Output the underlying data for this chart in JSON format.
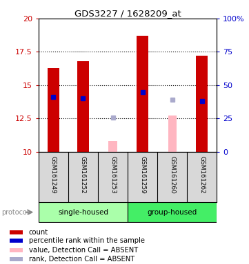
{
  "title": "GDS3227 / 1628209_at",
  "samples": [
    "GSM161249",
    "GSM161252",
    "GSM161253",
    "GSM161259",
    "GSM161260",
    "GSM161262"
  ],
  "bar_values": [
    16.3,
    16.8,
    null,
    18.7,
    null,
    17.2
  ],
  "bar_color": "#CC0000",
  "bar_width": 0.4,
  "percentile_values": [
    14.1,
    14.0,
    null,
    14.5,
    null,
    13.8
  ],
  "percentile_color": "#0000CC",
  "absent_bar_values": [
    null,
    null,
    10.8,
    null,
    12.7,
    null
  ],
  "absent_bar_color": "#FFB6C1",
  "absent_rank_values": [
    null,
    null,
    12.55,
    null,
    13.9,
    null
  ],
  "absent_rank_color": "#AAAACC",
  "ylim": [
    10,
    20
  ],
  "yticks_left": [
    10,
    12.5,
    15,
    17.5,
    20
  ],
  "yticks_right_pct": [
    0,
    25,
    50,
    75,
    100
  ],
  "sample_bg": "#D8D8D8",
  "plot_bg": "#FFFFFF",
  "group_single_color": "#AAFFAA",
  "group_group_color": "#44EE66",
  "legend_items": [
    {
      "label": "count",
      "color": "#CC0000"
    },
    {
      "label": "percentile rank within the sample",
      "color": "#0000CC"
    },
    {
      "label": "value, Detection Call = ABSENT",
      "color": "#FFB6C1"
    },
    {
      "label": "rank, Detection Call = ABSENT",
      "color": "#AAAACC"
    }
  ]
}
